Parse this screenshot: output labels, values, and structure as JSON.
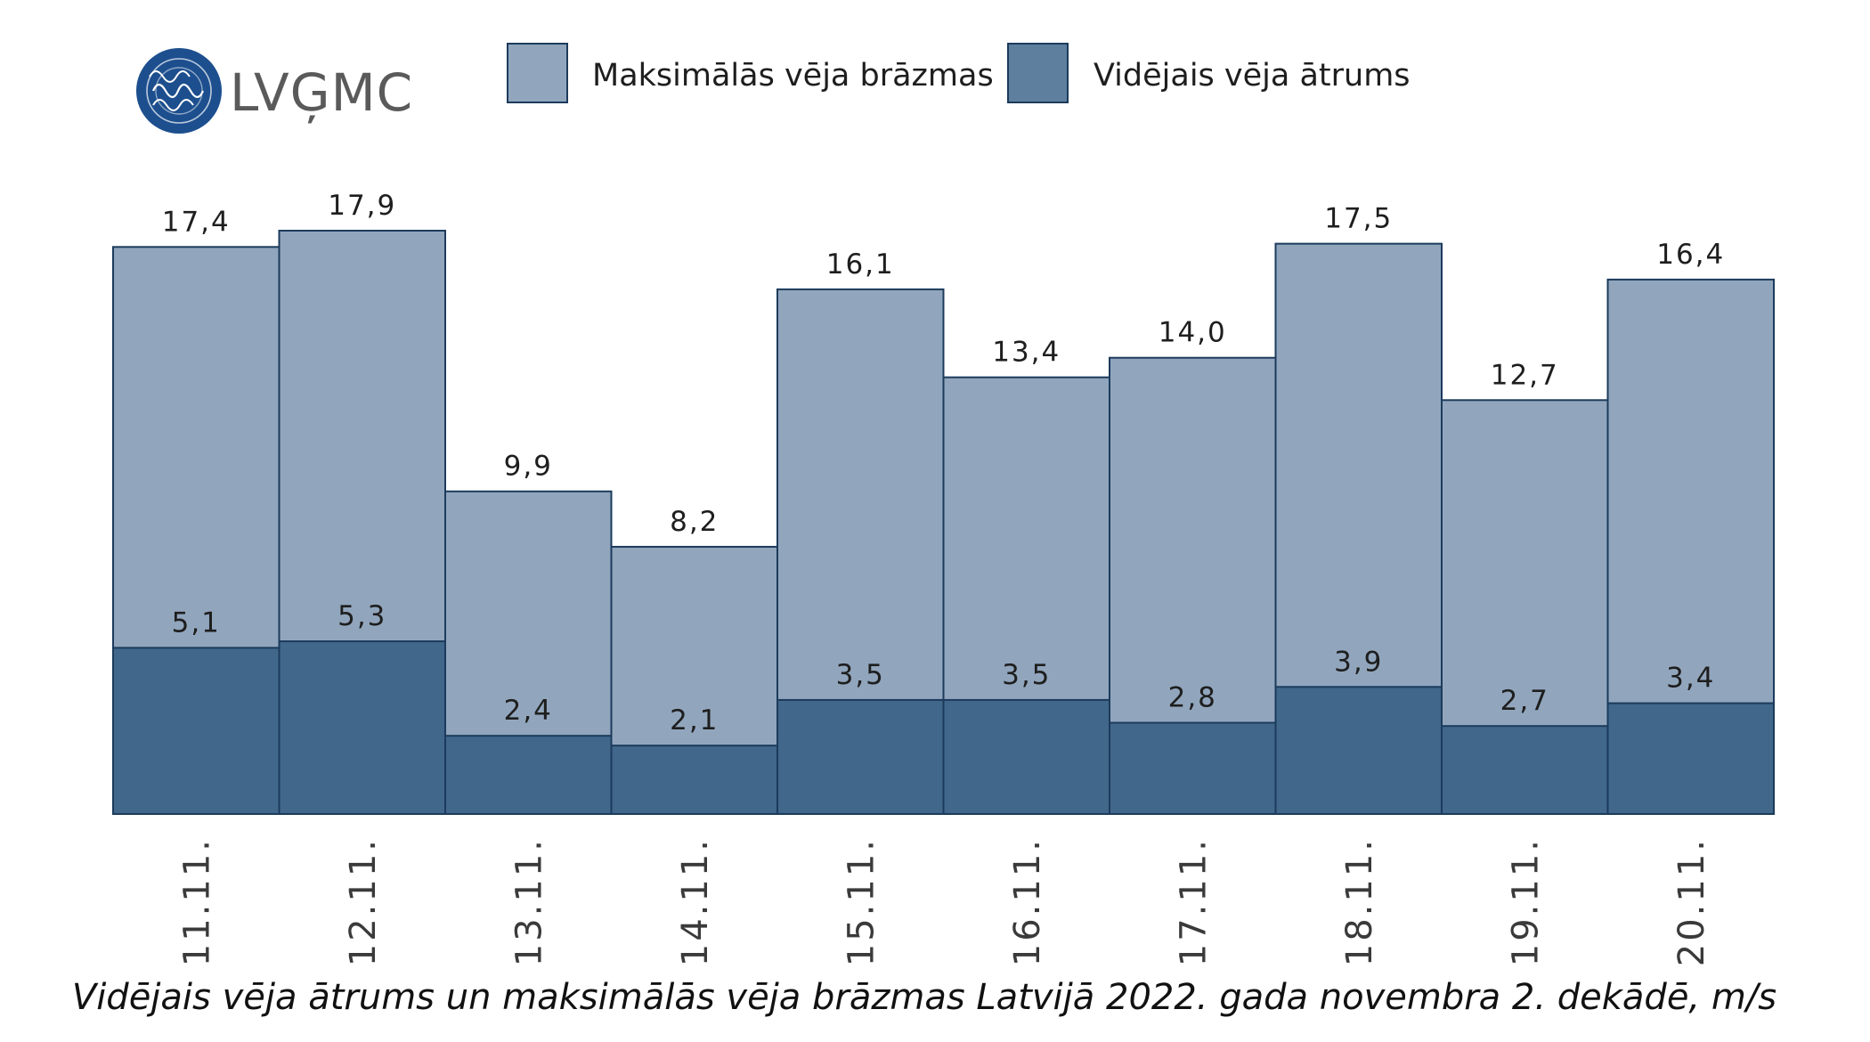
{
  "logo": {
    "text": "LVĢMC",
    "icon": "lvgmc-wave-logo-icon"
  },
  "colors": {
    "gust": "#91a6bd",
    "average": "#41678b",
    "stroke": "#1c3b5c",
    "logo": "#1d4f8e"
  },
  "chart_data": {
    "type": "bar",
    "categories": [
      "11.11.",
      "12.11.",
      "13.11.",
      "14.11.",
      "15.11.",
      "16.11.",
      "17.11.",
      "18.11.",
      "19.11.",
      "20.11."
    ],
    "series": [
      {
        "name": "Maksimālās vēja brāzmas",
        "values": [
          17.4,
          17.9,
          9.9,
          8.2,
          16.1,
          13.4,
          14.0,
          17.5,
          12.7,
          16.4
        ],
        "labels": [
          "17,4",
          "17,9",
          "9,9",
          "8,2",
          "16,1",
          "13,4",
          "14,0",
          "17,5",
          "12,7",
          "16,4"
        ]
      },
      {
        "name": "Vidējais vēja ātrums",
        "values": [
          5.1,
          5.3,
          2.4,
          2.1,
          3.5,
          3.5,
          2.8,
          3.9,
          2.7,
          3.4
        ],
        "labels": [
          "5,1",
          "5,3",
          "2,4",
          "2,1",
          "3,5",
          "3,5",
          "2,8",
          "3,9",
          "2,7",
          "3,4"
        ]
      }
    ],
    "overlap": true,
    "ylim": [
      0,
      17.9
    ],
    "legend_position": "top",
    "grid": false,
    "caption": "Vidējais vēja ātrums un maksimālās vēja brāzmas Latvijā 2022. gada novembra 2. dekādē, m/s"
  }
}
